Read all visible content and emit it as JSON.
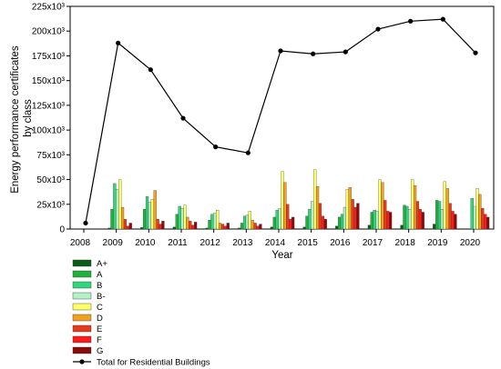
{
  "chart_data": {
    "type": "bar",
    "xlabel": "Year",
    "ylabel_lines": [
      "Energy performance certificates",
      "by class"
    ],
    "ylim": [
      0,
      225000
    ],
    "yticks": [
      0,
      25000,
      50000,
      75000,
      100000,
      125000,
      150000,
      175000,
      200000,
      225000
    ],
    "ytick_labels": [
      "0",
      "25x10³",
      "50x10³",
      "75x10³",
      "100x10³",
      "125x10³",
      "150x10³",
      "175x10³",
      "200x10³",
      "225x10³"
    ],
    "categories": [
      "2008",
      "2009",
      "2010",
      "2011",
      "2012",
      "2013",
      "2014",
      "2015",
      "2016",
      "2017",
      "2018",
      "2019",
      "2020"
    ],
    "grid": false,
    "legend_position": "bottom",
    "series": [
      {
        "name": "A+",
        "color": "#0a5c17",
        "values": [
          0,
          1000,
          1500,
          2000,
          1000,
          1000,
          2000,
          2000,
          3000,
          4000,
          4000,
          5000,
          0
        ]
      },
      {
        "name": "A",
        "color": "#22b13d",
        "values": [
          0,
          20000,
          20000,
          15000,
          9000,
          6000,
          12000,
          13000,
          12000,
          17000,
          24000,
          29000,
          0
        ]
      },
      {
        "name": "B",
        "color": "#2fd67a",
        "values": [
          0,
          46000,
          33000,
          23000,
          15000,
          13000,
          19000,
          20000,
          15000,
          19000,
          23000,
          28000,
          31000
        ]
      },
      {
        "name": "B-",
        "color": "#b4f0c8",
        "values": [
          0,
          40000,
          27000,
          21000,
          16000,
          14000,
          21000,
          28000,
          22000,
          18000,
          20000,
          20000,
          23000
        ]
      },
      {
        "name": "C",
        "color": "#ffff66",
        "values": [
          0,
          50000,
          30000,
          24000,
          19000,
          18000,
          58000,
          60000,
          40000,
          50000,
          50000,
          48000,
          41000
        ]
      },
      {
        "name": "D",
        "color": "#f2a020",
        "values": [
          0,
          22000,
          39000,
          12000,
          6000,
          9000,
          47000,
          43000,
          42000,
          47000,
          44000,
          41000,
          35000
        ]
      },
      {
        "name": "E",
        "color": "#e63a1a",
        "values": [
          0,
          10000,
          10000,
          8000,
          5000,
          6000,
          25000,
          26000,
          30000,
          29000,
          28000,
          26000,
          21000
        ]
      },
      {
        "name": "F",
        "color": "#ff1a1a",
        "values": [
          0,
          3000,
          5000,
          4000,
          3000,
          3000,
          10000,
          13000,
          22000,
          18000,
          20000,
          18000,
          15000
        ]
      },
      {
        "name": "G",
        "color": "#8b0a0a",
        "values": [
          0,
          6000,
          8000,
          7000,
          6000,
          5000,
          12000,
          10000,
          26000,
          17000,
          17000,
          15000,
          12000
        ]
      }
    ],
    "line": {
      "name": "Total for Residential Buildings",
      "color": "#000000",
      "values": [
        6000,
        188000,
        161000,
        112000,
        83000,
        77000,
        180000,
        177000,
        179000,
        202000,
        210000,
        212000,
        178000
      ]
    }
  }
}
